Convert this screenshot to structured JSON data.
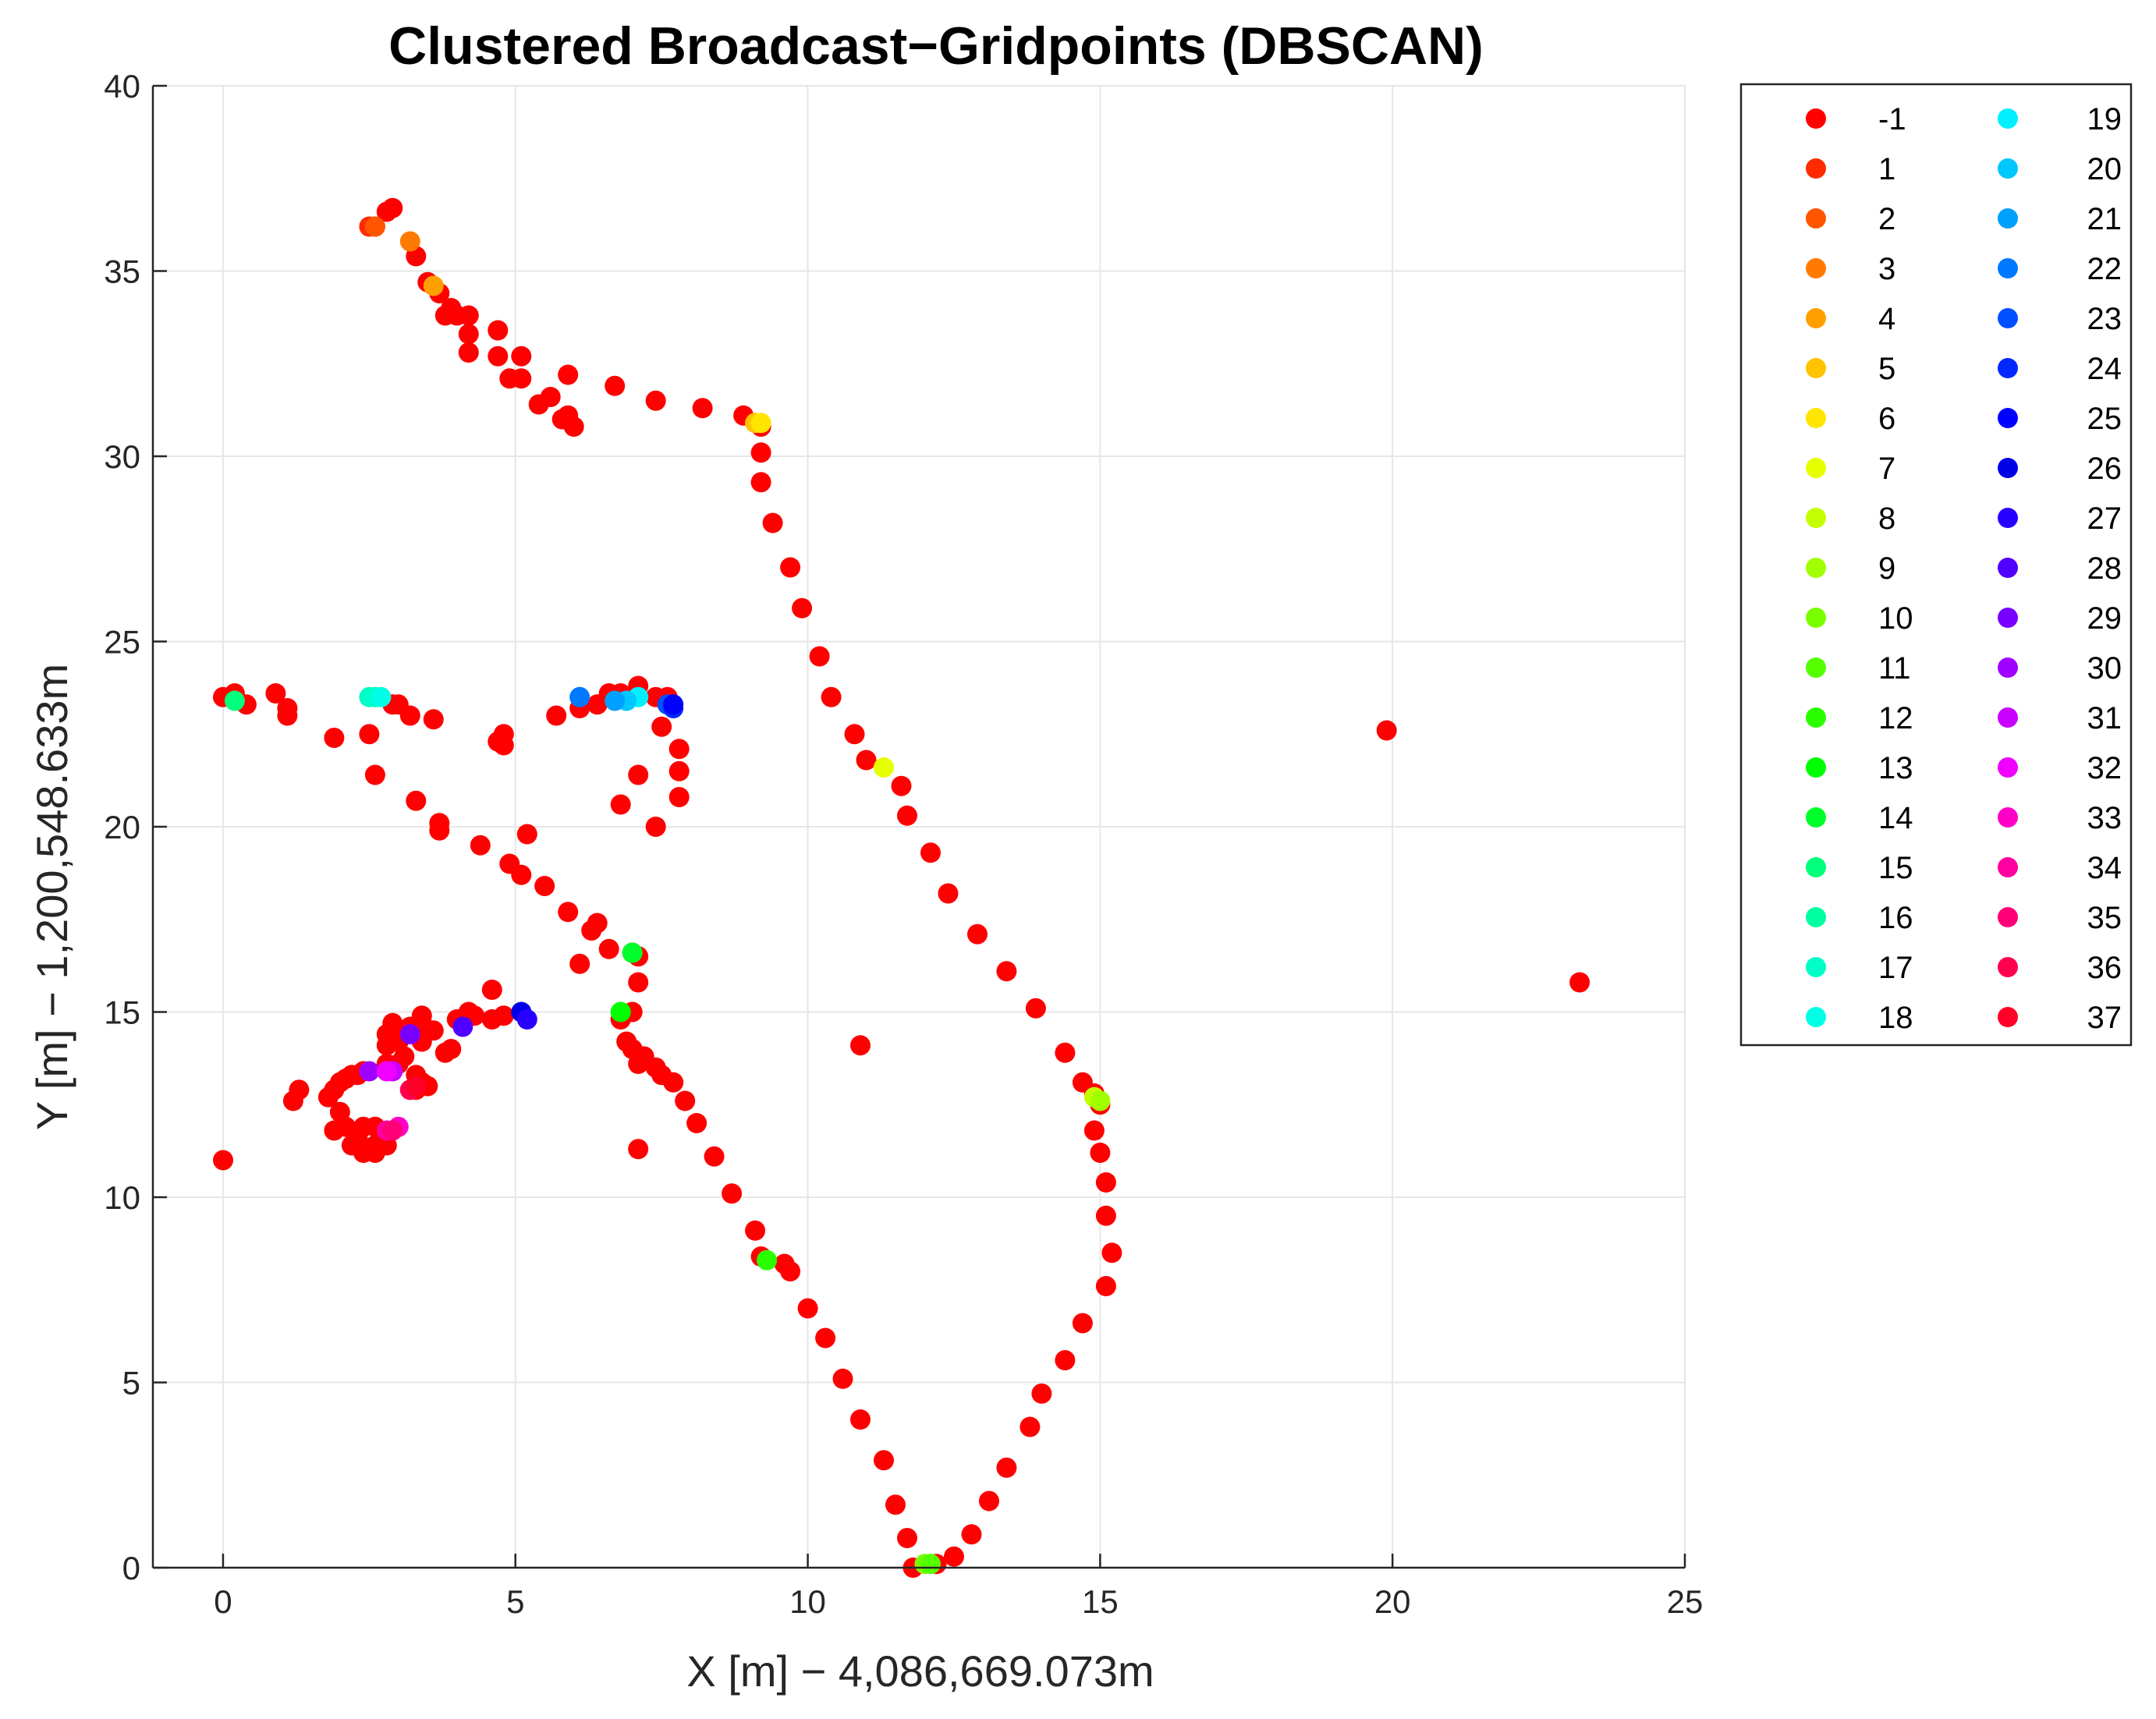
{
  "chart_data": {
    "type": "scatter",
    "title": "Clustered Broadcast−Gridpoints (DBSCAN)",
    "xlabel": "X [m] − 4,086,669.073m",
    "ylabel": "Y [m] − 1,200,548.633m",
    "xlim": [
      -1.2,
      25
    ],
    "ylim": [
      0,
      40
    ],
    "xticks": [
      0,
      5,
      10,
      15,
      20,
      25
    ],
    "yticks": [
      0,
      5,
      10,
      15,
      20,
      25,
      30,
      35,
      40
    ],
    "xtick_labels": [
      "0",
      "5",
      "10",
      "15",
      "20",
      "25"
    ],
    "ytick_labels": [
      "0",
      "5",
      "10",
      "15",
      "20",
      "25",
      "30",
      "35",
      "40"
    ],
    "grid": true,
    "legend_position": "outside-right",
    "legend_labels": [
      "-1",
      "1",
      "2",
      "3",
      "4",
      "5",
      "6",
      "7",
      "8",
      "9",
      "10",
      "11",
      "12",
      "13",
      "14",
      "15",
      "16",
      "17",
      "18",
      "19",
      "20",
      "21",
      "22",
      "23",
      "24",
      "25",
      "26",
      "27",
      "28",
      "29",
      "30",
      "31",
      "32",
      "33",
      "34",
      "35",
      "36",
      "37"
    ],
    "colors": [
      "#ff0000",
      "#ff2a00",
      "#ff5500",
      "#ff7a00",
      "#ffa000",
      "#ffc300",
      "#ffe600",
      "#e6ff00",
      "#c3ff00",
      "#a0ff00",
      "#7aff00",
      "#55ff00",
      "#2aff00",
      "#00ff00",
      "#00ff2a",
      "#00ff7a",
      "#00ffa0",
      "#00ffc8",
      "#00ffe6",
      "#00f0ff",
      "#00c8ff",
      "#00a0ff",
      "#0078ff",
      "#0050ff",
      "#0028ff",
      "#0000ff",
      "#0000e6",
      "#2800ff",
      "#5000ff",
      "#7800ff",
      "#a000ff",
      "#c800ff",
      "#f000ff",
      "#ff00c8",
      "#ff00a0",
      "#ff0078",
      "#ff0050",
      "#ff0028"
    ],
    "series": [
      {
        "name": "-1",
        "points": [
          [
            2.6,
            36.2
          ],
          [
            2.8,
            36.6
          ],
          [
            2.9,
            36.7
          ],
          [
            3.3,
            35.4
          ],
          [
            3.5,
            34.7
          ],
          [
            3.7,
            34.4
          ],
          [
            3.9,
            34.0
          ],
          [
            3.8,
            33.8
          ],
          [
            4.0,
            33.8
          ],
          [
            4.2,
            33.8
          ],
          [
            4.2,
            33.3
          ],
          [
            4.7,
            33.4
          ],
          [
            4.2,
            32.8
          ],
          [
            4.7,
            32.7
          ],
          [
            5.1,
            32.7
          ],
          [
            4.9,
            32.1
          ],
          [
            5.1,
            32.1
          ],
          [
            5.9,
            32.2
          ],
          [
            5.6,
            31.6
          ],
          [
            5.4,
            31.4
          ],
          [
            5.8,
            31.0
          ],
          [
            5.9,
            31.1
          ],
          [
            6.0,
            30.8
          ],
          [
            6.7,
            31.9
          ],
          [
            7.4,
            31.5
          ],
          [
            8.2,
            31.3
          ],
          [
            8.9,
            31.1
          ],
          [
            9.2,
            30.8
          ],
          [
            9.2,
            30.1
          ],
          [
            9.2,
            29.3
          ],
          [
            9.4,
            28.2
          ],
          [
            9.7,
            27.0
          ],
          [
            9.9,
            25.9
          ],
          [
            10.2,
            24.6
          ],
          [
            10.4,
            23.5
          ],
          [
            10.8,
            22.5
          ],
          [
            11.0,
            21.8
          ],
          [
            11.6,
            21.1
          ],
          [
            11.7,
            20.3
          ],
          [
            12.1,
            19.3
          ],
          [
            12.4,
            18.2
          ],
          [
            12.9,
            17.1
          ],
          [
            13.4,
            16.1
          ],
          [
            13.9,
            15.1
          ],
          [
            14.4,
            13.9
          ],
          [
            14.7,
            13.1
          ],
          [
            14.9,
            12.8
          ],
          [
            15.0,
            12.5
          ],
          [
            14.9,
            11.8
          ],
          [
            15.0,
            11.2
          ],
          [
            15.1,
            10.4
          ],
          [
            15.1,
            9.5
          ],
          [
            15.2,
            8.5
          ],
          [
            15.1,
            7.6
          ],
          [
            14.7,
            6.6
          ],
          [
            14.4,
            5.6
          ],
          [
            14.0,
            4.7
          ],
          [
            13.8,
            3.8
          ],
          [
            13.4,
            2.7
          ],
          [
            13.1,
            1.8
          ],
          [
            12.8,
            0.9
          ],
          [
            12.5,
            0.3
          ],
          [
            12.2,
            0.1
          ],
          [
            11.8,
            0.0
          ],
          [
            11.7,
            0.8
          ],
          [
            11.5,
            1.7
          ],
          [
            11.3,
            2.9
          ],
          [
            10.9,
            4.0
          ],
          [
            10.6,
            5.1
          ],
          [
            10.3,
            6.2
          ],
          [
            10.0,
            7.0
          ],
          [
            9.7,
            8.0
          ],
          [
            9.6,
            8.2
          ],
          [
            9.2,
            8.4
          ],
          [
            9.1,
            9.1
          ],
          [
            8.7,
            10.1
          ],
          [
            8.4,
            11.1
          ],
          [
            8.1,
            12.0
          ],
          [
            7.9,
            12.6
          ],
          [
            7.7,
            13.1
          ],
          [
            7.5,
            13.3
          ],
          [
            7.4,
            13.5
          ],
          [
            7.1,
            13.6
          ],
          [
            7.2,
            13.8
          ],
          [
            7.0,
            14.0
          ],
          [
            6.9,
            14.2
          ],
          [
            6.8,
            14.8
          ],
          [
            7.0,
            15.0
          ],
          [
            7.0,
            16.6
          ],
          [
            7.1,
            16.5
          ],
          [
            7.1,
            15.8
          ],
          [
            7.1,
            11.3
          ],
          [
            6.6,
            16.7
          ],
          [
            6.4,
            17.4
          ],
          [
            6.3,
            17.2
          ],
          [
            6.1,
            16.3
          ],
          [
            5.9,
            17.7
          ],
          [
            5.5,
            18.4
          ],
          [
            5.1,
            18.7
          ],
          [
            5.2,
            19.8
          ],
          [
            4.9,
            19.0
          ],
          [
            4.4,
            19.5
          ],
          [
            3.7,
            20.1
          ],
          [
            3.7,
            19.9
          ],
          [
            3.3,
            20.7
          ],
          [
            2.6,
            21.4
          ],
          [
            1.9,
            22.4
          ],
          [
            2.5,
            22.5
          ],
          [
            3.2,
            23.0
          ],
          [
            3.6,
            22.9
          ],
          [
            3.0,
            23.3
          ],
          [
            2.9,
            23.3
          ],
          [
            0.0,
            23.5
          ],
          [
            0.2,
            23.6
          ],
          [
            0.4,
            23.3
          ],
          [
            0.9,
            23.6
          ],
          [
            1.1,
            23.2
          ],
          [
            1.1,
            23.0
          ],
          [
            4.7,
            22.3
          ],
          [
            4.8,
            22.5
          ],
          [
            4.8,
            22.2
          ],
          [
            5.7,
            23.0
          ],
          [
            6.1,
            23.2
          ],
          [
            6.4,
            23.3
          ],
          [
            6.6,
            23.6
          ],
          [
            6.8,
            23.6
          ],
          [
            7.1,
            23.8
          ],
          [
            7.4,
            23.5
          ],
          [
            7.5,
            22.7
          ],
          [
            7.6,
            23.5
          ],
          [
            7.8,
            22.1
          ],
          [
            7.8,
            21.5
          ],
          [
            7.8,
            20.8
          ],
          [
            7.4,
            20.0
          ],
          [
            7.1,
            21.4
          ],
          [
            6.8,
            20.6
          ],
          [
            0.0,
            11.0
          ],
          [
            1.2,
            12.6
          ],
          [
            1.3,
            12.9
          ],
          [
            1.8,
            12.7
          ],
          [
            1.9,
            12.9
          ],
          [
            2.0,
            13.1
          ],
          [
            2.1,
            13.2
          ],
          [
            2.2,
            13.3
          ],
          [
            2.3,
            13.3
          ],
          [
            2.4,
            13.4
          ],
          [
            1.9,
            11.8
          ],
          [
            2.1,
            11.9
          ],
          [
            2.3,
            11.6
          ],
          [
            2.4,
            11.9
          ],
          [
            2.2,
            11.4
          ],
          [
            2.4,
            11.2
          ],
          [
            2.6,
            11.2
          ],
          [
            2.6,
            11.9
          ],
          [
            2.6,
            11.4
          ],
          [
            2.8,
            11.4
          ],
          [
            2.0,
            12.3
          ],
          [
            2.8,
            13.6
          ],
          [
            2.8,
            14.1
          ],
          [
            2.8,
            14.4
          ],
          [
            2.9,
            14.7
          ],
          [
            3.0,
            14.4
          ],
          [
            3.2,
            14.6
          ],
          [
            3.4,
            14.7
          ],
          [
            3.4,
            14.9
          ],
          [
            3.6,
            14.5
          ],
          [
            3.0,
            14.2
          ],
          [
            3.1,
            13.8
          ],
          [
            3.3,
            13.3
          ],
          [
            3.4,
            13.1
          ],
          [
            3.2,
            12.9
          ],
          [
            3.0,
            13.6
          ],
          [
            3.4,
            14.2
          ],
          [
            3.8,
            13.9
          ],
          [
            3.9,
            14.0
          ],
          [
            4.2,
            15.0
          ],
          [
            4.3,
            14.9
          ],
          [
            4.6,
            15.6
          ],
          [
            4.6,
            14.8
          ],
          [
            4.8,
            14.9
          ],
          [
            4.0,
            14.8
          ],
          [
            3.3,
            12.9
          ],
          [
            3.5,
            13.0
          ],
          [
            10.9,
            14.1
          ],
          [
            19.9,
            22.6
          ],
          [
            23.2,
            15.8
          ]
        ]
      },
      {
        "name": "1",
        "points": [
          [
            2.5,
            36.2
          ]
        ]
      },
      {
        "name": "2",
        "points": [
          [
            2.6,
            36.2
          ]
        ]
      },
      {
        "name": "3",
        "points": [
          [
            3.2,
            35.8
          ]
        ]
      },
      {
        "name": "4",
        "points": [
          [
            3.6,
            34.6
          ]
        ]
      },
      {
        "name": "5",
        "points": [
          [
            9.1,
            30.9
          ]
        ]
      },
      {
        "name": "6",
        "points": [
          [
            9.2,
            30.9
          ]
        ]
      },
      {
        "name": "7",
        "points": [
          [
            11.3,
            21.6
          ]
        ]
      },
      {
        "name": "8",
        "points": [
          [
            14.9,
            12.7
          ]
        ]
      },
      {
        "name": "9",
        "points": [
          [
            15.0,
            12.6
          ]
        ]
      },
      {
        "name": "10",
        "points": [
          [
            12.0,
            0.1
          ]
        ]
      },
      {
        "name": "11",
        "points": [
          [
            12.1,
            0.1
          ]
        ]
      },
      {
        "name": "12",
        "points": [
          [
            9.3,
            8.3
          ]
        ]
      },
      {
        "name": "13",
        "points": [
          [
            6.8,
            15.0
          ]
        ]
      },
      {
        "name": "14",
        "points": [
          [
            7.0,
            16.6
          ]
        ]
      },
      {
        "name": "15",
        "points": [
          [
            0.2,
            23.4
          ]
        ]
      },
      {
        "name": "16",
        "points": [
          [
            2.6,
            23.5
          ]
        ]
      },
      {
        "name": "17",
        "points": [
          [
            2.5,
            23.5
          ]
        ]
      },
      {
        "name": "18",
        "points": [
          [
            2.7,
            23.5
          ]
        ]
      },
      {
        "name": "19",
        "points": [
          [
            7.1,
            23.5
          ]
        ]
      },
      {
        "name": "20",
        "points": [
          [
            6.9,
            23.4
          ]
        ]
      },
      {
        "name": "21",
        "points": [
          [
            6.7,
            23.4
          ]
        ]
      },
      {
        "name": "22",
        "points": [
          [
            6.1,
            23.5
          ]
        ]
      },
      {
        "name": "23",
        "points": [
          [
            7.6,
            23.3
          ]
        ]
      },
      {
        "name": "24",
        "points": [
          [
            7.7,
            23.2
          ]
        ]
      },
      {
        "name": "25",
        "points": [
          [
            7.7,
            23.3
          ]
        ]
      },
      {
        "name": "26",
        "points": [
          [
            5.1,
            15.0
          ]
        ]
      },
      {
        "name": "27",
        "points": [
          [
            5.2,
            14.8
          ]
        ]
      },
      {
        "name": "28",
        "points": [
          [
            4.1,
            14.6
          ]
        ]
      },
      {
        "name": "29",
        "points": [
          [
            3.2,
            14.4
          ]
        ]
      },
      {
        "name": "30",
        "points": [
          [
            2.5,
            13.4
          ]
        ]
      },
      {
        "name": "31",
        "points": [
          [
            2.9,
            13.4
          ]
        ]
      },
      {
        "name": "32",
        "points": [
          [
            2.8,
            13.4
          ]
        ]
      },
      {
        "name": "33",
        "points": [
          [
            3.0,
            11.9
          ]
        ]
      },
      {
        "name": "34",
        "points": [
          [
            2.8,
            11.8
          ]
        ]
      },
      {
        "name": "35",
        "points": [
          [
            2.9,
            11.8
          ]
        ]
      },
      {
        "name": "36",
        "points": [
          [
            3.2,
            12.9
          ]
        ]
      },
      {
        "name": "37",
        "points": [
          [
            3.3,
            13.0
          ]
        ]
      }
    ]
  }
}
